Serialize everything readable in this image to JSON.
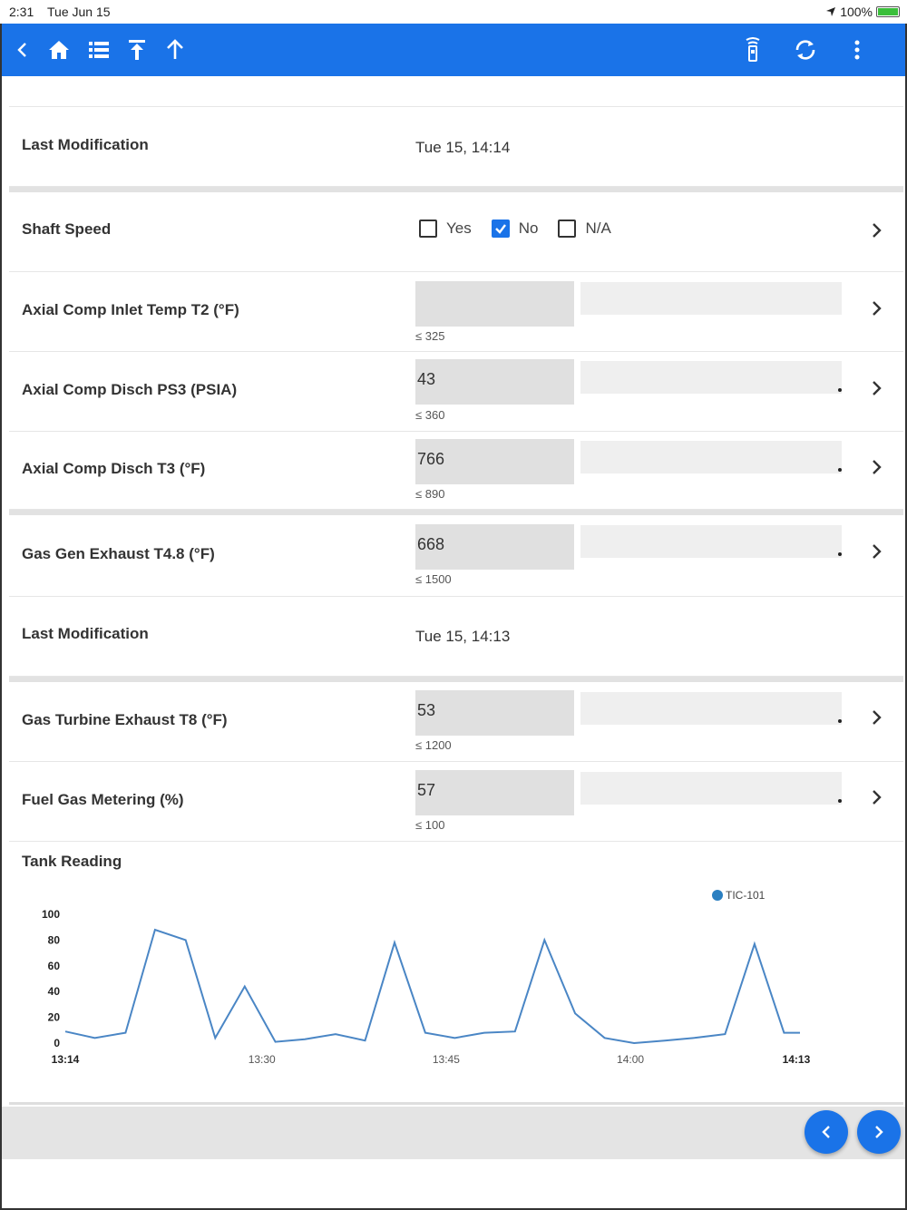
{
  "status_bar": {
    "time": "2:31",
    "date": "Tue Jun 15",
    "battery": "100%",
    "battery_level": 1.0
  },
  "app_bar": {
    "icons": [
      "back-icon",
      "home-icon",
      "list-icon",
      "upload-icon",
      "arrow-up-icon",
      "sensor-icon",
      "sync-icon",
      "more-vert-icon"
    ],
    "accent": "#1a73e8"
  },
  "rows": {
    "last_mod_1": {
      "label": "Last Modification",
      "value": "Tue 15, 14:14"
    },
    "shaft_speed": {
      "label": "Shaft Speed",
      "options": [
        {
          "label": "Yes",
          "checked": false
        },
        {
          "label": "No",
          "checked": true
        },
        {
          "label": "N/A",
          "checked": false
        }
      ]
    },
    "axial_inlet": {
      "label": "Axial Comp Inlet Temp T2 (°F)",
      "value": "",
      "limit": "≤ 325"
    },
    "axial_ps3": {
      "label": "Axial Comp Disch PS3 (PSIA)",
      "value": "43",
      "limit": "≤ 360"
    },
    "axial_t3": {
      "label": "Axial Comp Disch T3 (°F)",
      "value": "766",
      "limit": "≤ 890"
    },
    "gas_gen": {
      "label": "Gas Gen Exhaust T4.8 (°F)",
      "value": "668",
      "limit": "≤ 1500"
    },
    "last_mod_2": {
      "label": "Last Modification",
      "value": "Tue 15, 14:13"
    },
    "gas_turbine": {
      "label": "Gas Turbine Exhaust T8 (°F)",
      "value": "53",
      "limit": "≤ 1200"
    },
    "fuel_gas": {
      "label": "Fuel Gas Metering (%)",
      "value": "57",
      "limit": "≤ 100"
    }
  },
  "chart_title": "Tank Reading",
  "chart_data": {
    "type": "line",
    "title": "Tank Reading",
    "xlabel": "",
    "ylabel": "",
    "ylim": [
      0,
      100
    ],
    "yticks": [
      "0",
      "20",
      "40",
      "60",
      "80",
      "100"
    ],
    "xticks": [
      {
        "label": "13:14",
        "t": 0,
        "bold": true
      },
      {
        "label": "13:30",
        "t": 16,
        "bold": false
      },
      {
        "label": "13:45",
        "t": 31,
        "bold": false
      },
      {
        "label": "14:00",
        "t": 46,
        "bold": false
      },
      {
        "label": "14:13",
        "t": 59.5,
        "bold": true
      }
    ],
    "legend": "top-right",
    "series": [
      {
        "name": "TIC-101",
        "color": "#4a86c5",
        "x": [
          0,
          2.4,
          4.9,
          7.3,
          9.8,
          12.2,
          14.6,
          17.1,
          19.5,
          22,
          24.4,
          26.8,
          29.3,
          31.7,
          34.1,
          36.6,
          39,
          41.5,
          43.9,
          46.3,
          48.8,
          51.2,
          53.7,
          56.1,
          58.5,
          59.8
        ],
        "y": [
          9,
          4,
          8,
          88,
          80,
          4,
          44,
          1,
          3,
          7,
          2,
          78,
          8,
          4,
          8,
          9,
          80,
          23,
          4,
          0,
          2,
          4,
          7,
          77,
          8,
          8
        ]
      }
    ]
  }
}
